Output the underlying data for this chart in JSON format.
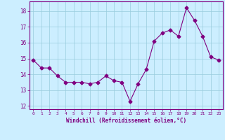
{
  "x": [
    0,
    1,
    2,
    3,
    4,
    5,
    6,
    7,
    8,
    9,
    10,
    11,
    12,
    13,
    14,
    15,
    16,
    17,
    18,
    19,
    20,
    21,
    22,
    23
  ],
  "y": [
    14.9,
    14.4,
    14.4,
    13.9,
    13.5,
    13.5,
    13.5,
    13.4,
    13.5,
    13.9,
    13.6,
    13.5,
    12.3,
    13.4,
    14.3,
    16.1,
    16.6,
    16.8,
    16.4,
    18.2,
    17.4,
    16.4,
    15.1,
    14.9
  ],
  "line_color": "#800080",
  "marker": "D",
  "marker_size": 2.5,
  "bg_color": "#cceeff",
  "grid_color": "#99ccdd",
  "xlabel": "Windchill (Refroidissement éolien,°C)",
  "xlabel_color": "#800080",
  "tick_color": "#800080",
  "axis_color": "#800080",
  "ylim": [
    11.8,
    18.6
  ],
  "xlim": [
    -0.5,
    23.5
  ],
  "yticks": [
    12,
    13,
    14,
    15,
    16,
    17,
    18
  ],
  "xticks": [
    0,
    1,
    2,
    3,
    4,
    5,
    6,
    7,
    8,
    9,
    10,
    11,
    12,
    13,
    14,
    15,
    16,
    17,
    18,
    19,
    20,
    21,
    22,
    23
  ]
}
